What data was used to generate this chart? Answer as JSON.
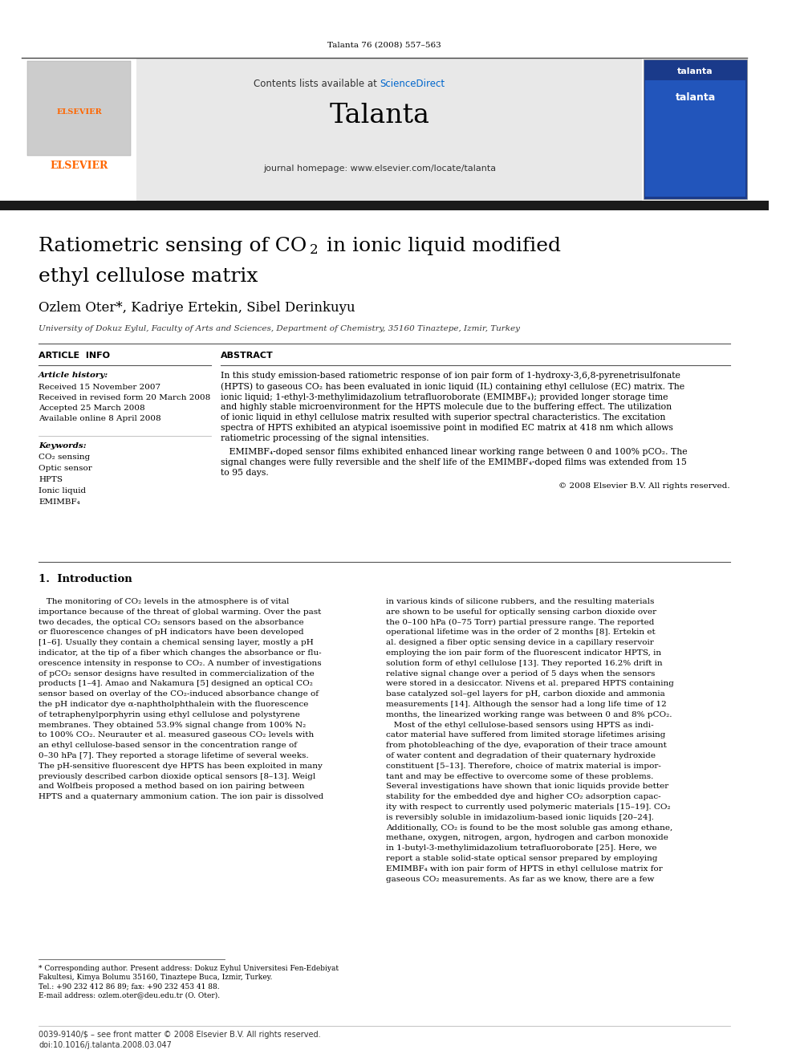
{
  "page_width": 9.92,
  "page_height": 13.23,
  "bg_color": "#ffffff",
  "journal_citation": "Talanta 76 (2008) 557–563",
  "header_bg_color": "#e8e8e8",
  "elsevier_text_color": "#ff6600",
  "journal_name": "Talanta",
  "journal_homepage": "journal homepage: www.elsevier.com/locate/talanta",
  "sciencedirect_text": "Contents lists available at ",
  "sciencedirect_link": "ScienceDirect",
  "sciencedirect_color": "#0066cc",
  "section_article_info": "ARTICLE  INFO",
  "section_abstract": "ABSTRACT",
  "article_history_label": "Article history:",
  "received": "Received 15 November 2007",
  "received_revised": "Received in revised form 20 March 2008",
  "accepted": "Accepted 25 March 2008",
  "available": "Available online 8 April 2008",
  "keywords_label": "Keywords:",
  "keywords": [
    "CO₂ sensing",
    "Optic sensor",
    "HPTS",
    "Ionic liquid",
    "EMIMBF₄"
  ],
  "abstract_text": "In this study emission-based ratiometric response of ion pair form of 1-hydroxy-3,6,8-pyrenetrisulfonate\n(HPTS) to gaseous CO₂ has been evaluated in ionic liquid (IL) containing ethyl cellulose (EC) matrix. The\nionic liquid; 1-ethyl-3-methylimidazolium tetrafluoroborate (EMIMBF₄); provided longer storage time\nand highly stable microenvironment for the HPTS molecule due to the buffering effect. The utilization\nof ionic liquid in ethyl cellulose matrix resulted with superior spectral characteristics. The excitation\nspectra of HPTS exhibited an atypical isoemissive point in modified EC matrix at 418 nm which allows\nratiometric processing of the signal intensities.",
  "abstract_text2": "   EMIMBF₄-doped sensor films exhibited enhanced linear working range between 0 and 100% pCO₂. The\nsignal changes were fully reversible and the shelf life of the EMIMBF₄-doped films was extended from 15\nto 95 days.",
  "copyright": "© 2008 Elsevier B.V. All rights reserved.",
  "intro_heading": "1.  Introduction",
  "intro_col1": "   The monitoring of CO₂ levels in the atmosphere is of vital\nimportance because of the threat of global warming. Over the past\ntwo decades, the optical CO₂ sensors based on the absorbance\nor fluorescence changes of pH indicators have been developed\n[1–6]. Usually they contain a chemical sensing layer, mostly a pH\nindicator, at the tip of a fiber which changes the absorbance or flu-\norescence intensity in response to CO₂. A number of investigations\nof pCO₂ sensor designs have resulted in commercialization of the\nproducts [1–4]. Amao and Nakamura [5] designed an optical CO₂\nsensor based on overlay of the CO₂-induced absorbance change of\nthe pH indicator dye α-naphtholphthalein with the fluorescence\nof tetraphenylporphyrin using ethyl cellulose and polystyrene\nmembranes. They obtained 53.9% signal change from 100% N₂\nto 100% CO₂. Neurauter et al. measured gaseous CO₂ levels with\nan ethyl cellulose-based sensor in the concentration range of\n0–30 hPa [7]. They reported a storage lifetime of several weeks.\nThe pH-sensitive fluorescent dye HPTS has been exploited in many\npreviously described carbon dioxide optical sensors [8–13]. Weigl\nand Wolfbeis proposed a method based on ion pairing between\nHPTS and a quaternary ammonium cation. The ion pair is dissolved",
  "intro_col2": "in various kinds of silicone rubbers, and the resulting materials\nare shown to be useful for optically sensing carbon dioxide over\nthe 0–100 hPa (0–75 Torr) partial pressure range. The reported\noperational lifetime was in the order of 2 months [8]. Ertekin et\nal. designed a fiber optic sensing device in a capillary reservoir\nemploying the ion pair form of the fluorescent indicator HPTS, in\nsolution form of ethyl cellulose [13]. They reported 16.2% drift in\nrelative signal change over a period of 5 days when the sensors\nwere stored in a desiccator. Nivens et al. prepared HPTS containing\nbase catalyzed sol–gel layers for pH, carbon dioxide and ammonia\nmeasurements [14]. Although the sensor had a long life time of 12\nmonths, the linearized working range was between 0 and 8% pCO₂.\n   Most of the ethyl cellulose-based sensors using HPTS as indi-\ncator material have suffered from limited storage lifetimes arising\nfrom photobleaching of the dye, evaporation of their trace amount\nof water content and degradation of their quaternary hydroxide\nconstituent [5–13]. Therefore, choice of matrix material is impor-\ntant and may be effective to overcome some of these problems.\nSeveral investigations have shown that ionic liquids provide better\nstability for the embedded dye and higher CO₂ adsorption capac-\nity with respect to currently used polymeric materials [15–19]. CO₂\nis reversibly soluble in imidazolium-based ionic liquids [20–24].\nAdditionally, CO₂ is found to be the most soluble gas among ethane,\nmethane, oxygen, nitrogen, argon, hydrogen and carbon monoxide\nin 1-butyl-3-methylimidazolium tetrafluoroborate [25]. Here, we\nreport a stable solid-state optical sensor prepared by employing\nEMIMBF₄ with ion pair form of HPTS in ethyl cellulose matrix for\ngaseous CO₂ measurements. As far as we know, there are a few",
  "footnote1": "* Corresponding author. Present address: Dokuz Eyhul Universitesi Fen-Edebiyat",
  "footnote2": "Fakultesi, Kimya Bolumu 35160, Tinaztepe Buca, Izmir, Turkey.",
  "footnote3": "Tel.: +90 232 412 86 89; fax: +90 232 453 41 88.",
  "footnote4": "E-mail address: ozlem.oter@deu.edu.tr (O. Oter).",
  "footer1": "0039-9140/$ – see front matter © 2008 Elsevier B.V. All rights reserved.",
  "footer2": "doi:10.1016/j.talanta.2008.03.047"
}
